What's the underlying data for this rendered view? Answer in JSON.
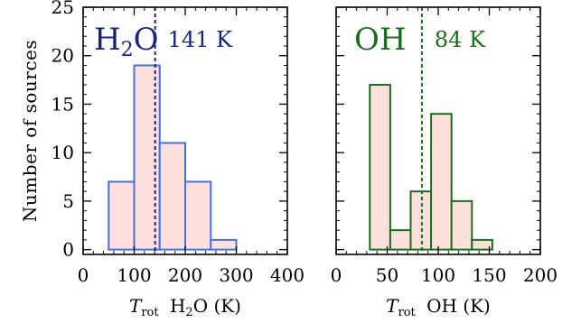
{
  "figure": {
    "ylabel": "Number of sources",
    "colors": {
      "bar_fill": "#fde0dc",
      "axis": "#000000",
      "h2o": "#1a237e",
      "h2o_bar_edge": "#4a6fe0",
      "oh": "#1b6e1b",
      "oh_bar_edge": "#1b6e1b"
    }
  },
  "chart_data": [
    {
      "type": "bar",
      "panel": "left",
      "species_label": "H2O",
      "species_base": "H",
      "species_sub": "2",
      "species_tail": "O",
      "median_label": "141 K",
      "median": 141,
      "xlabel_T": "T",
      "xlabel_sub": "rot",
      "xlabel_rest": " H2O (K)",
      "xlabel_rest_a": " H",
      "xlabel_rest_sub": "2",
      "xlabel_rest_b": "O (K)",
      "xlim": [
        0,
        400
      ],
      "ylim": [
        -0.5,
        25
      ],
      "xticks": [
        0,
        100,
        200,
        300,
        400
      ],
      "yticks": [
        0,
        5,
        10,
        15,
        20,
        25
      ],
      "bins": [
        {
          "x0": 50,
          "x1": 100,
          "count": 7
        },
        {
          "x0": 100,
          "x1": 150,
          "count": 19
        },
        {
          "x0": 150,
          "x1": 200,
          "count": 11
        },
        {
          "x0": 200,
          "x1": 250,
          "count": 7
        },
        {
          "x0": 250,
          "x1": 300,
          "count": 1
        }
      ],
      "color_key": "h2o",
      "edge_key": "h2o_bar_edge"
    },
    {
      "type": "bar",
      "panel": "right",
      "species_label": "OH",
      "median_label": "84 K",
      "median": 84,
      "xlabel_T": "T",
      "xlabel_sub": "rot",
      "xlabel_rest": " OH (K)",
      "xlim": [
        0,
        200
      ],
      "ylim": [
        -0.5,
        25
      ],
      "xticks": [
        0,
        50,
        100,
        150,
        200
      ],
      "yticks": [
        0,
        5,
        10,
        15,
        20,
        25
      ],
      "bins": [
        {
          "x0": 33,
          "x1": 53,
          "count": 17
        },
        {
          "x0": 53,
          "x1": 73,
          "count": 2
        },
        {
          "x0": 73,
          "x1": 93,
          "count": 6
        },
        {
          "x0": 93,
          "x1": 113,
          "count": 14
        },
        {
          "x0": 113,
          "x1": 133,
          "count": 5
        },
        {
          "x0": 133,
          "x1": 153,
          "count": 1
        }
      ],
      "color_key": "oh",
      "edge_key": "oh_bar_edge"
    }
  ]
}
